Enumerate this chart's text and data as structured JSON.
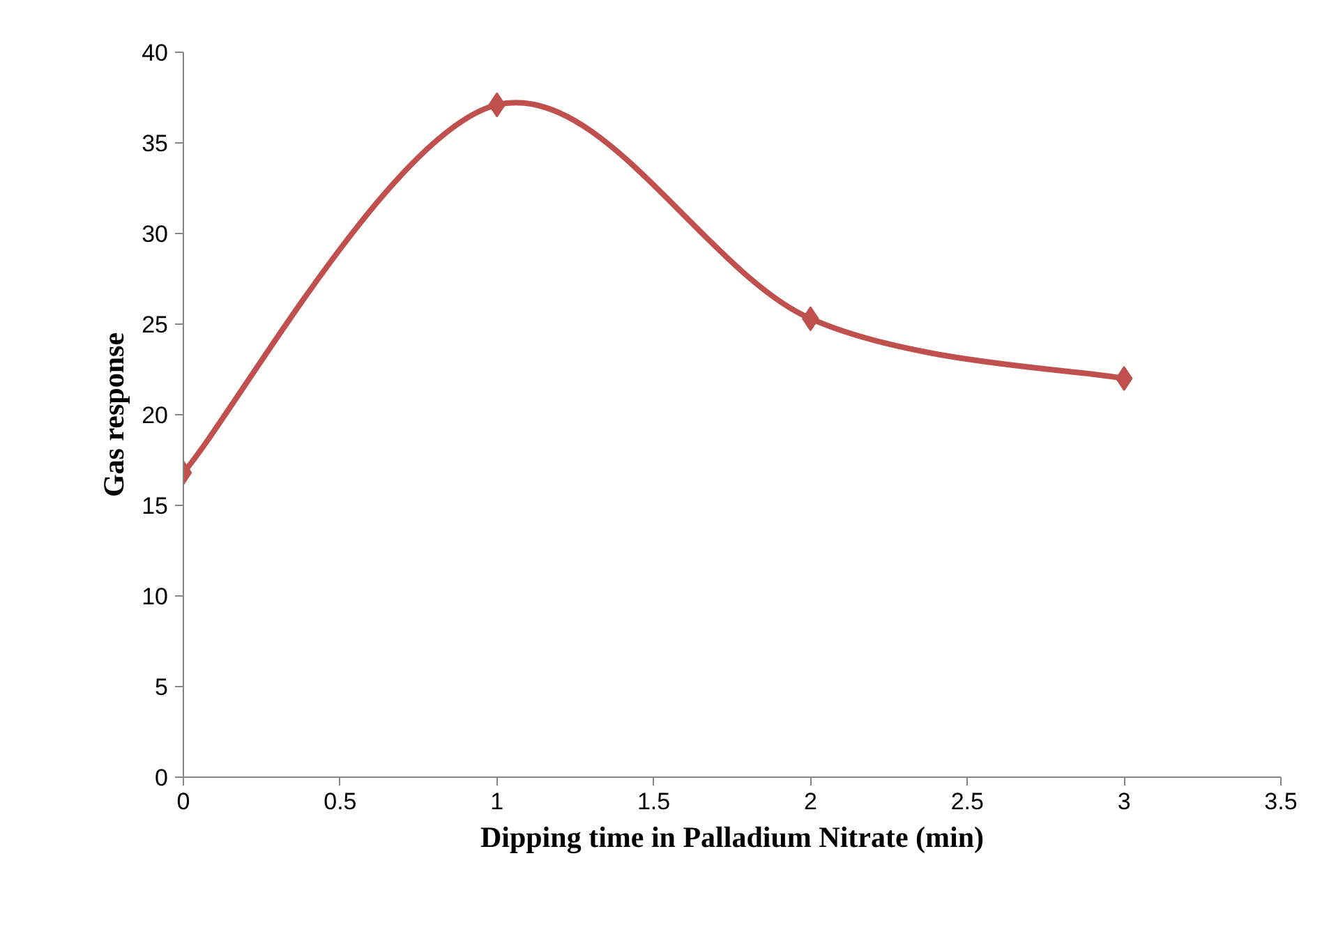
{
  "chart_data": {
    "type": "line",
    "xlabel": "Dipping time in Palladium Nitrate (min)",
    "ylabel": "Gas response",
    "x": [
      0,
      1,
      2,
      3
    ],
    "series": [
      {
        "color": "#c0504d",
        "values": [
          16.8,
          37.1,
          25.3,
          22.0
        ]
      }
    ],
    "xlim": [
      0,
      3.5
    ],
    "xticks": [
      0,
      0.5,
      1,
      1.5,
      2,
      2.5,
      3,
      3.5
    ],
    "ylim": [
      0,
      40
    ],
    "yticks": [
      0,
      5,
      10,
      15,
      20,
      25,
      30,
      35,
      40
    ],
    "grid": false,
    "marker": "diamond",
    "line_style": "solid"
  }
}
